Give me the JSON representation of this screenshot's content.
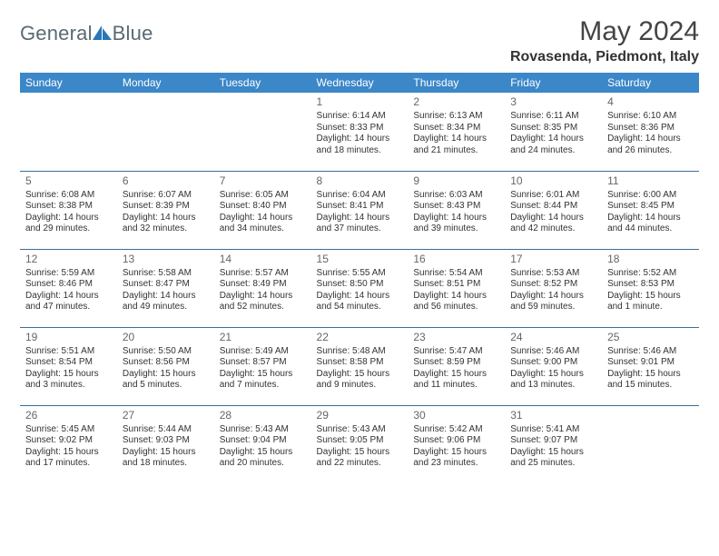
{
  "brand": {
    "name_left": "General",
    "name_right": "Blue"
  },
  "title": {
    "month": "May 2024",
    "location": "Rovasenda, Piedmont, Italy"
  },
  "colors": {
    "header_bg": "#3b87c8",
    "header_text": "#ffffff",
    "row_border": "#3b6e9b",
    "logo_text": "#5a6a73",
    "logo_icon": "#2a77b8"
  },
  "day_headers": [
    "Sunday",
    "Monday",
    "Tuesday",
    "Wednesday",
    "Thursday",
    "Friday",
    "Saturday"
  ],
  "weeks": [
    [
      null,
      null,
      null,
      {
        "n": "1",
        "sr": "Sunrise: 6:14 AM",
        "ss": "Sunset: 8:33 PM",
        "d1": "Daylight: 14 hours",
        "d2": "and 18 minutes."
      },
      {
        "n": "2",
        "sr": "Sunrise: 6:13 AM",
        "ss": "Sunset: 8:34 PM",
        "d1": "Daylight: 14 hours",
        "d2": "and 21 minutes."
      },
      {
        "n": "3",
        "sr": "Sunrise: 6:11 AM",
        "ss": "Sunset: 8:35 PM",
        "d1": "Daylight: 14 hours",
        "d2": "and 24 minutes."
      },
      {
        "n": "4",
        "sr": "Sunrise: 6:10 AM",
        "ss": "Sunset: 8:36 PM",
        "d1": "Daylight: 14 hours",
        "d2": "and 26 minutes."
      }
    ],
    [
      {
        "n": "5",
        "sr": "Sunrise: 6:08 AM",
        "ss": "Sunset: 8:38 PM",
        "d1": "Daylight: 14 hours",
        "d2": "and 29 minutes."
      },
      {
        "n": "6",
        "sr": "Sunrise: 6:07 AM",
        "ss": "Sunset: 8:39 PM",
        "d1": "Daylight: 14 hours",
        "d2": "and 32 minutes."
      },
      {
        "n": "7",
        "sr": "Sunrise: 6:05 AM",
        "ss": "Sunset: 8:40 PM",
        "d1": "Daylight: 14 hours",
        "d2": "and 34 minutes."
      },
      {
        "n": "8",
        "sr": "Sunrise: 6:04 AM",
        "ss": "Sunset: 8:41 PM",
        "d1": "Daylight: 14 hours",
        "d2": "and 37 minutes."
      },
      {
        "n": "9",
        "sr": "Sunrise: 6:03 AM",
        "ss": "Sunset: 8:43 PM",
        "d1": "Daylight: 14 hours",
        "d2": "and 39 minutes."
      },
      {
        "n": "10",
        "sr": "Sunrise: 6:01 AM",
        "ss": "Sunset: 8:44 PM",
        "d1": "Daylight: 14 hours",
        "d2": "and 42 minutes."
      },
      {
        "n": "11",
        "sr": "Sunrise: 6:00 AM",
        "ss": "Sunset: 8:45 PM",
        "d1": "Daylight: 14 hours",
        "d2": "and 44 minutes."
      }
    ],
    [
      {
        "n": "12",
        "sr": "Sunrise: 5:59 AM",
        "ss": "Sunset: 8:46 PM",
        "d1": "Daylight: 14 hours",
        "d2": "and 47 minutes."
      },
      {
        "n": "13",
        "sr": "Sunrise: 5:58 AM",
        "ss": "Sunset: 8:47 PM",
        "d1": "Daylight: 14 hours",
        "d2": "and 49 minutes."
      },
      {
        "n": "14",
        "sr": "Sunrise: 5:57 AM",
        "ss": "Sunset: 8:49 PM",
        "d1": "Daylight: 14 hours",
        "d2": "and 52 minutes."
      },
      {
        "n": "15",
        "sr": "Sunrise: 5:55 AM",
        "ss": "Sunset: 8:50 PM",
        "d1": "Daylight: 14 hours",
        "d2": "and 54 minutes."
      },
      {
        "n": "16",
        "sr": "Sunrise: 5:54 AM",
        "ss": "Sunset: 8:51 PM",
        "d1": "Daylight: 14 hours",
        "d2": "and 56 minutes."
      },
      {
        "n": "17",
        "sr": "Sunrise: 5:53 AM",
        "ss": "Sunset: 8:52 PM",
        "d1": "Daylight: 14 hours",
        "d2": "and 59 minutes."
      },
      {
        "n": "18",
        "sr": "Sunrise: 5:52 AM",
        "ss": "Sunset: 8:53 PM",
        "d1": "Daylight: 15 hours",
        "d2": "and 1 minute."
      }
    ],
    [
      {
        "n": "19",
        "sr": "Sunrise: 5:51 AM",
        "ss": "Sunset: 8:54 PM",
        "d1": "Daylight: 15 hours",
        "d2": "and 3 minutes."
      },
      {
        "n": "20",
        "sr": "Sunrise: 5:50 AM",
        "ss": "Sunset: 8:56 PM",
        "d1": "Daylight: 15 hours",
        "d2": "and 5 minutes."
      },
      {
        "n": "21",
        "sr": "Sunrise: 5:49 AM",
        "ss": "Sunset: 8:57 PM",
        "d1": "Daylight: 15 hours",
        "d2": "and 7 minutes."
      },
      {
        "n": "22",
        "sr": "Sunrise: 5:48 AM",
        "ss": "Sunset: 8:58 PM",
        "d1": "Daylight: 15 hours",
        "d2": "and 9 minutes."
      },
      {
        "n": "23",
        "sr": "Sunrise: 5:47 AM",
        "ss": "Sunset: 8:59 PM",
        "d1": "Daylight: 15 hours",
        "d2": "and 11 minutes."
      },
      {
        "n": "24",
        "sr": "Sunrise: 5:46 AM",
        "ss": "Sunset: 9:00 PM",
        "d1": "Daylight: 15 hours",
        "d2": "and 13 minutes."
      },
      {
        "n": "25",
        "sr": "Sunrise: 5:46 AM",
        "ss": "Sunset: 9:01 PM",
        "d1": "Daylight: 15 hours",
        "d2": "and 15 minutes."
      }
    ],
    [
      {
        "n": "26",
        "sr": "Sunrise: 5:45 AM",
        "ss": "Sunset: 9:02 PM",
        "d1": "Daylight: 15 hours",
        "d2": "and 17 minutes."
      },
      {
        "n": "27",
        "sr": "Sunrise: 5:44 AM",
        "ss": "Sunset: 9:03 PM",
        "d1": "Daylight: 15 hours",
        "d2": "and 18 minutes."
      },
      {
        "n": "28",
        "sr": "Sunrise: 5:43 AM",
        "ss": "Sunset: 9:04 PM",
        "d1": "Daylight: 15 hours",
        "d2": "and 20 minutes."
      },
      {
        "n": "29",
        "sr": "Sunrise: 5:43 AM",
        "ss": "Sunset: 9:05 PM",
        "d1": "Daylight: 15 hours",
        "d2": "and 22 minutes."
      },
      {
        "n": "30",
        "sr": "Sunrise: 5:42 AM",
        "ss": "Sunset: 9:06 PM",
        "d1": "Daylight: 15 hours",
        "d2": "and 23 minutes."
      },
      {
        "n": "31",
        "sr": "Sunrise: 5:41 AM",
        "ss": "Sunset: 9:07 PM",
        "d1": "Daylight: 15 hours",
        "d2": "and 25 minutes."
      },
      null
    ]
  ]
}
